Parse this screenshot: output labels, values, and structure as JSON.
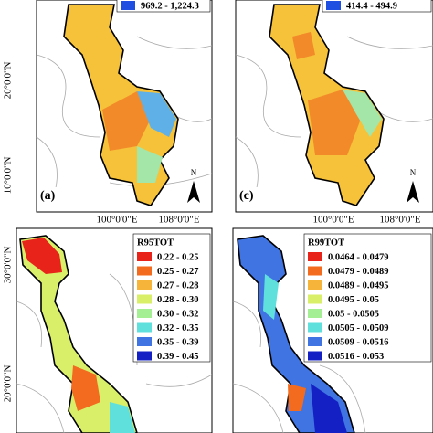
{
  "panels": [
    {
      "label": "(a)",
      "north": "N",
      "legend": [
        {
          "range": "969.2 - 1,224.3",
          "color": "#1f4fe0"
        }
      ],
      "lat_labels": [
        "20°0'0\"N",
        "10°0'0\"N"
      ],
      "lon_labels": [
        "100°0'0\"E",
        "108°0'0\"E"
      ]
    },
    {
      "label": "(c)",
      "north": "N",
      "legend": [
        {
          "range": "414.4 - 494.9",
          "color": "#1f4fe0"
        }
      ],
      "lat_labels": [],
      "lon_labels": [
        "100°0'0\"E",
        "108°0'0\"E"
      ]
    },
    {
      "legend_title": "R95TOT",
      "legend": [
        {
          "range": "0.22 - 0.25",
          "color": "#e8241a"
        },
        {
          "range": "0.25 - 0.27",
          "color": "#f26b1e"
        },
        {
          "range": "0.27 - 0.28",
          "color": "#f6b43a"
        },
        {
          "range": "0.28 - 0.30",
          "color": "#d9ef6a"
        },
        {
          "range": "0.30 - 0.32",
          "color": "#a4ef94"
        },
        {
          "range": "0.32 - 0.35",
          "color": "#5fe0dc"
        },
        {
          "range": "0.35 - 0.39",
          "color": "#3f74e2"
        },
        {
          "range": "0.39 - 0.45",
          "color": "#1420c4"
        }
      ],
      "lat_labels": [
        "30°0'0\"N",
        "20°0'0\"N"
      ]
    },
    {
      "legend_title": "R99TOT",
      "legend": [
        {
          "range": "0.0464 - 0.0479",
          "color": "#e8241a"
        },
        {
          "range": "0.0479 - 0.0489",
          "color": "#f26b1e"
        },
        {
          "range": "0.0489 - 0.0495",
          "color": "#f6b43a"
        },
        {
          "range": "0.0495 - 0.05",
          "color": "#d9ef6a"
        },
        {
          "range": "0.05 - 0.0505",
          "color": "#a4ef94"
        },
        {
          "range": "0.0505 - 0.0509",
          "color": "#5fe0dc"
        },
        {
          "range": "0.0509 - 0.0516",
          "color": "#3f74e2"
        },
        {
          "range": "0.0516 - 0.053",
          "color": "#1420c4"
        }
      ],
      "lat_labels": []
    }
  ]
}
